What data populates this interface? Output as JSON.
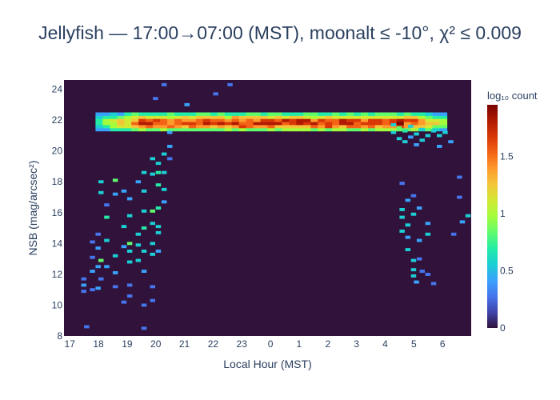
{
  "chart_data": {
    "type": "heatmap",
    "title": "Jellyfish — 17:00→07:00 (MST), moonalt ≤ -10°, χ² ≤ 0.009",
    "xlabel": "Local Hour (MST)",
    "ylabel": "NSB (mag/arcsec²)",
    "x_tick_labels": [
      "17",
      "18",
      "19",
      "20",
      "21",
      "22",
      "23",
      "0",
      "1",
      "2",
      "3",
      "4",
      "5",
      "6"
    ],
    "y_ticks": [
      8,
      10,
      12,
      14,
      16,
      18,
      20,
      22,
      24
    ],
    "ylim": [
      8,
      24.6
    ],
    "colorbar": {
      "title": "log₁₀ count",
      "ticks": [
        0,
        0.5,
        1,
        1.5
      ],
      "tick_labels": [
        "0",
        "0.5",
        "1",
        "1.5"
      ],
      "range": [
        0,
        1.95
      ]
    },
    "colorscale": [
      "#30123b",
      "#4145ab",
      "#4675ed",
      "#39a2fc",
      "#1bcfd4",
      "#24eca6",
      "#61fc6c",
      "#a4fc3b",
      "#d1e834",
      "#f3c63a",
      "#fe9b2d",
      "#f36315",
      "#d93806",
      "#b11901",
      "#7a0402"
    ],
    "empty_color": "#30123b",
    "main_band": {
      "x_start": 17.9,
      "x_end": 30.1,
      "center_mag": 21.95,
      "bin_width_hr": 0.25,
      "row_mags": [
        21.4,
        21.6,
        21.8,
        22.0,
        22.2,
        22.4
      ],
      "row_weights": [
        0.55,
        0.85,
        1.0,
        0.95,
        0.7,
        0.45
      ],
      "peak_log_count": 1.9
    },
    "twilight_points": [
      [
        17.4,
        10.9,
        0.3
      ],
      [
        17.4,
        11.3,
        0.35
      ],
      [
        17.4,
        11.7,
        0.3
      ],
      [
        17.5,
        8.6,
        0.3
      ],
      [
        17.7,
        11.0,
        0.3
      ],
      [
        17.7,
        12.2,
        0.35
      ],
      [
        17.7,
        13.1,
        0.3
      ],
      [
        17.7,
        14.1,
        0.3
      ],
      [
        17.9,
        11.1,
        0.4
      ],
      [
        17.9,
        12.5,
        0.35
      ],
      [
        17.9,
        13.7,
        0.4
      ],
      [
        17.9,
        14.6,
        0.3
      ],
      [
        18.0,
        17.3,
        0.6
      ],
      [
        18.0,
        18.0,
        0.5
      ],
      [
        18.0,
        12.9,
        0.8
      ],
      [
        18.0,
        11.7,
        0.3
      ],
      [
        18.2,
        14.2,
        0.5
      ],
      [
        18.2,
        15.7,
        0.7
      ],
      [
        18.2,
        12.5,
        0.4
      ],
      [
        18.2,
        16.5,
        0.3
      ],
      [
        18.5,
        18.1,
        0.8
      ],
      [
        18.5,
        17.2,
        0.4
      ],
      [
        18.5,
        13.2,
        0.5
      ],
      [
        18.5,
        12.1,
        0.4
      ],
      [
        18.5,
        11.2,
        0.3
      ],
      [
        18.8,
        17.4,
        0.4
      ],
      [
        18.8,
        15.1,
        0.5
      ],
      [
        18.8,
        13.8,
        0.4
      ],
      [
        18.8,
        10.2,
        0.3
      ],
      [
        19.0,
        16.9,
        0.4
      ],
      [
        19.0,
        15.8,
        0.5
      ],
      [
        19.0,
        14.0,
        0.8
      ],
      [
        19.0,
        13.5,
        0.6
      ],
      [
        19.0,
        12.8,
        0.5
      ],
      [
        19.0,
        11.3,
        0.3
      ],
      [
        19.0,
        10.6,
        0.3
      ],
      [
        19.3,
        18.0,
        0.4
      ],
      [
        19.3,
        14.6,
        0.6
      ],
      [
        19.3,
        13.9,
        0.5
      ],
      [
        19.3,
        12.9,
        0.5
      ],
      [
        19.5,
        18.6,
        0.5
      ],
      [
        19.5,
        17.4,
        0.6
      ],
      [
        19.5,
        16.1,
        0.5
      ],
      [
        19.5,
        15.0,
        0.7
      ],
      [
        19.5,
        13.5,
        0.5
      ],
      [
        19.5,
        12.2,
        0.4
      ],
      [
        19.5,
        10.0,
        0.3
      ],
      [
        19.5,
        8.5,
        0.3
      ],
      [
        19.8,
        19.5,
        0.5
      ],
      [
        19.8,
        18.5,
        0.6
      ],
      [
        19.8,
        16.1,
        0.8
      ],
      [
        19.8,
        15.3,
        0.6
      ],
      [
        19.8,
        14.0,
        0.6
      ],
      [
        19.8,
        13.3,
        0.5
      ],
      [
        19.8,
        11.2,
        0.3
      ],
      [
        19.8,
        10.3,
        0.3
      ],
      [
        20.0,
        19.2,
        0.6
      ],
      [
        20.0,
        18.6,
        0.7
      ],
      [
        20.0,
        17.8,
        0.7
      ],
      [
        20.0,
        16.3,
        0.7
      ],
      [
        20.0,
        15.1,
        0.6
      ],
      [
        20.0,
        14.7,
        0.5
      ],
      [
        20.0,
        13.5,
        0.4
      ],
      [
        20.2,
        19.8,
        0.5
      ],
      [
        20.2,
        18.6,
        0.6
      ],
      [
        20.2,
        17.5,
        0.5
      ],
      [
        20.2,
        16.7,
        0.4
      ],
      [
        20.4,
        20.3,
        0.4
      ],
      [
        20.4,
        19.5,
        0.3
      ],
      [
        20.4,
        21.2,
        0.35
      ],
      [
        19.9,
        23.4,
        0.3
      ],
      [
        20.2,
        24.3,
        0.3
      ],
      [
        21.0,
        23.0,
        0.4
      ],
      [
        22.0,
        23.7,
        0.3
      ],
      [
        22.5,
        24.3,
        0.3
      ]
    ],
    "dawn_points": [
      [
        28.2,
        21.2,
        0.5
      ],
      [
        28.2,
        21.7,
        0.6
      ],
      [
        28.4,
        20.8,
        0.5
      ],
      [
        28.4,
        21.5,
        0.8
      ],
      [
        28.6,
        21.3,
        0.7
      ],
      [
        28.6,
        20.6,
        0.5
      ],
      [
        28.8,
        21.6,
        0.5
      ],
      [
        28.8,
        20.9,
        0.4
      ],
      [
        29.0,
        21.1,
        0.6
      ],
      [
        29.0,
        20.4,
        0.4
      ],
      [
        29.2,
        21.4,
        0.6
      ],
      [
        29.2,
        20.7,
        0.5
      ],
      [
        29.4,
        21.0,
        0.5
      ],
      [
        29.6,
        21.3,
        0.5
      ],
      [
        29.8,
        21.0,
        0.6
      ],
      [
        29.8,
        20.3,
        0.4
      ],
      [
        30.0,
        21.2,
        0.5
      ],
      [
        30.2,
        20.6,
        0.4
      ],
      [
        28.5,
        16.2,
        0.6
      ],
      [
        28.5,
        15.7,
        0.5
      ],
      [
        28.5,
        14.8,
        0.5
      ],
      [
        28.5,
        17.9,
        0.3
      ],
      [
        28.7,
        16.8,
        0.4
      ],
      [
        28.7,
        15.2,
        0.5
      ],
      [
        28.7,
        13.6,
        0.5
      ],
      [
        28.7,
        14.4,
        0.4
      ],
      [
        28.9,
        15.9,
        0.6
      ],
      [
        28.9,
        12.9,
        0.5
      ],
      [
        28.9,
        11.9,
        0.5
      ],
      [
        28.9,
        12.3,
        0.6
      ],
      [
        29.1,
        16.3,
        0.4
      ],
      [
        29.1,
        14.2,
        0.4
      ],
      [
        29.1,
        13.0,
        0.3
      ],
      [
        29.4,
        15.3,
        0.4
      ],
      [
        29.4,
        14.6,
        0.5
      ],
      [
        29.4,
        12.0,
        0.3
      ],
      [
        29.6,
        11.4,
        0.3
      ],
      [
        29.2,
        12.2,
        0.3
      ],
      [
        29.0,
        11.5,
        0.4
      ],
      [
        28.9,
        17.1,
        0.3
      ],
      [
        30.5,
        18.3,
        0.3
      ],
      [
        30.5,
        17.0,
        0.3
      ],
      [
        30.3,
        14.6,
        0.3
      ],
      [
        30.6,
        15.4,
        0.35
      ],
      [
        30.8,
        15.8,
        0.5
      ]
    ]
  }
}
